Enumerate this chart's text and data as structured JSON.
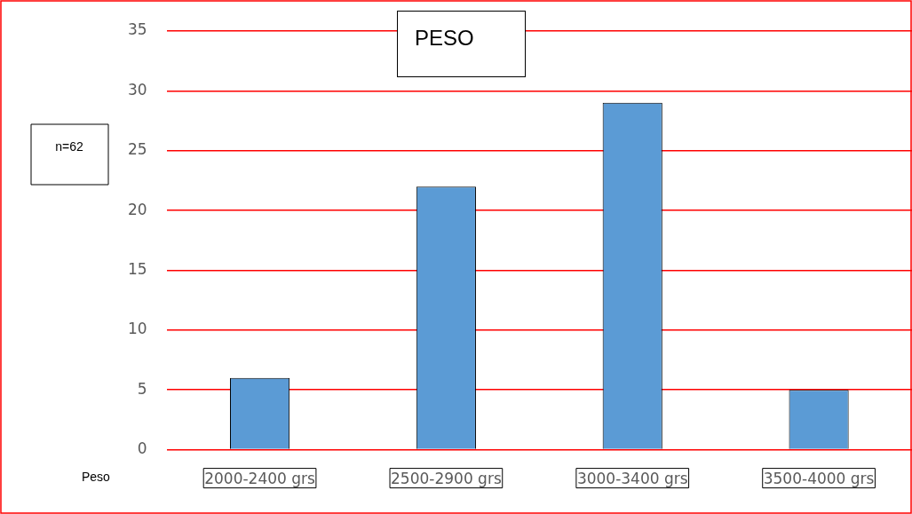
{
  "chart_data": {
    "type": "bar",
    "title": "PESO",
    "xlabel": "Peso",
    "categories": [
      "2000-2400 grs",
      "2500-2900 grs",
      "3000-3400 grs",
      "3500-4000 grs"
    ],
    "values": [
      6,
      22,
      29,
      5
    ],
    "color": "#5b9bd5",
    "ylim": [
      0,
      35
    ],
    "yticks": [
      0,
      5,
      10,
      15,
      20,
      25,
      30,
      35
    ],
    "grid": "y",
    "legend": false,
    "annotations": [
      "n=62"
    ]
  }
}
